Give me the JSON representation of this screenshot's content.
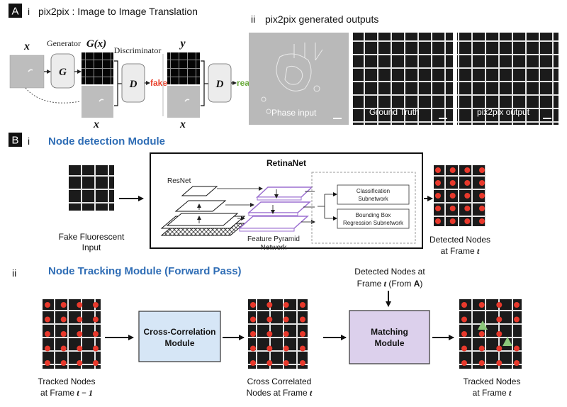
{
  "section_a": {
    "letter": "A",
    "part_i": {
      "roman": "i",
      "title": "pix2pix : Image to Image Translation",
      "x_label": "x",
      "generator_label": "Generator",
      "g_label": "G",
      "gx_label": "G(x)",
      "discriminator_label": "Discriminator",
      "y_label": "y",
      "d_label": "D",
      "fake_label": "fake",
      "real_label": "real",
      "x_bottom_label": "x"
    },
    "part_ii": {
      "roman": "ii",
      "title": "pix2pix generated outputs",
      "panels": [
        "Phase input",
        "Ground Truth",
        "pix2pix output"
      ]
    }
  },
  "section_b": {
    "letter": "B",
    "part_i": {
      "roman": "i",
      "title": "Node detection Module",
      "input_caption": [
        "Fake Fluorescent",
        "Input"
      ],
      "box_title": "RetinaNet",
      "resnet_label": "ResNet",
      "fpn_label": [
        "Feature Pyramid",
        "Network"
      ],
      "classification": [
        "Classification",
        "Subnetwork"
      ],
      "bbox": [
        "Bounding Box",
        "Regression Subnetwork"
      ],
      "output_caption": [
        "Detected Nodes",
        "at Frame"
      ],
      "output_var": "t"
    },
    "part_ii": {
      "roman": "ii",
      "title": "Node Tracking Module (Forward Pass)",
      "frame1_caption": [
        "Tracked Nodes",
        "at Frame"
      ],
      "frame1_var": "t − 1",
      "cross_corr_label": [
        "Cross-Correlation",
        "Module"
      ],
      "frame2_caption": [
        "Cross Correlated",
        "Nodes at Frame"
      ],
      "frame2_var": "t",
      "detected_above": [
        "Detected Nodes  at",
        "Frame",
        "(From",
        "A",
        ")"
      ],
      "detected_var": "t",
      "matching_label": [
        "Matching",
        "Module"
      ],
      "frame3_caption": [
        "Tracked Nodes",
        "at Frame"
      ],
      "frame3_var": "t"
    }
  },
  "colors": {
    "heading_blue": "#2f6db5",
    "fake_red": "#e8402a",
    "real_green": "#6aab3c",
    "node_red": "#e8392c",
    "cross_corr_fill": "#d6e6f6",
    "matching_fill": "#dcd0ec",
    "fpn_purple": "#9b6fd0",
    "triangle_green": "#8bc77a"
  }
}
